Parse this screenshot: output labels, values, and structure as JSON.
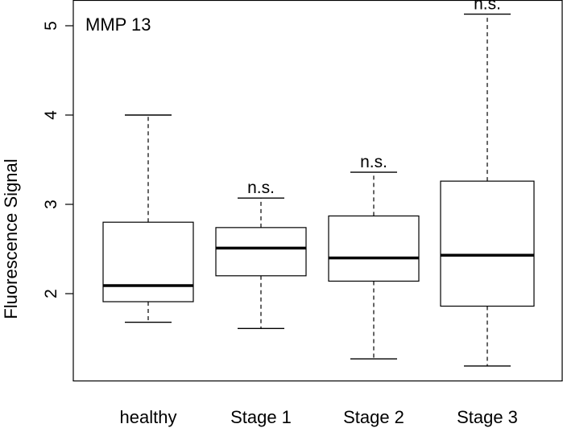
{
  "chart_data": {
    "type": "boxplot",
    "title": "",
    "annotation": "MMP 13",
    "xlabel": "",
    "ylabel": "Fluorescence Signal",
    "ylim": [
      1.0,
      5.15
    ],
    "yticks": [
      2,
      3,
      4,
      5
    ],
    "grid": false,
    "categories": [
      "healthy",
      "Stage 1",
      "Stage 2",
      "Stage 3"
    ],
    "boxes": [
      {
        "category": "healthy",
        "whisker_low": 1.68,
        "q1": 1.91,
        "median": 2.09,
        "q3": 2.8,
        "whisker_high": 4.0,
        "label": ""
      },
      {
        "category": "Stage 1",
        "whisker_low": 1.61,
        "q1": 2.2,
        "median": 2.51,
        "q3": 2.74,
        "whisker_high": 3.07,
        "label": "n.s."
      },
      {
        "category": "Stage 2",
        "whisker_low": 1.27,
        "q1": 2.14,
        "median": 2.4,
        "q3": 2.87,
        "whisker_high": 3.36,
        "label": "n.s."
      },
      {
        "category": "Stage 3",
        "whisker_low": 1.19,
        "q1": 1.86,
        "median": 2.43,
        "q3": 3.26,
        "whisker_high": 5.13,
        "label": "n.s."
      }
    ],
    "colors": {
      "line": "#000000",
      "fill": "#ffffff",
      "background": "#ffffff"
    }
  }
}
